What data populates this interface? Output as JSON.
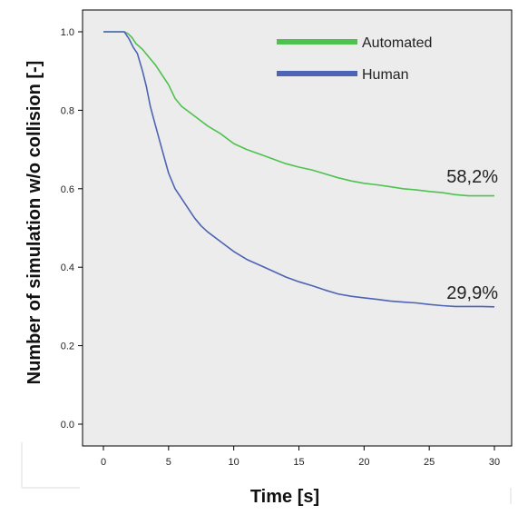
{
  "chart_data": {
    "type": "line",
    "title": "",
    "xlabel": "Time [s]",
    "ylabel": "Number of simulation w/o collision [-]",
    "xlim": [
      0,
      30
    ],
    "ylim": [
      0,
      1.0
    ],
    "x_ticks": [
      "0",
      "5",
      "10",
      "15",
      "20",
      "25",
      "30"
    ],
    "y_ticks": [
      "0.0",
      "0.2",
      "0.4",
      "0.6",
      "0.8",
      "1.0"
    ],
    "grid": false,
    "legend_position": "top-right",
    "background": "#ececec",
    "series": [
      {
        "name": "Automated",
        "color": "#4ec24e",
        "end_label": "58,2%",
        "x": [
          0,
          1.6,
          1.9,
          2.2,
          2.5,
          3.0,
          3.5,
          4.0,
          4.5,
          5.0,
          5.5,
          6.0,
          7.0,
          8.0,
          9.0,
          10.0,
          11.0,
          12.0,
          13.0,
          14.0,
          15.0,
          16.0,
          17.0,
          18.0,
          19.0,
          20.0,
          21.0,
          22.0,
          23.0,
          24.0,
          25.0,
          26.0,
          27.0,
          28.0,
          29.0,
          30.0
        ],
        "y": [
          1.0,
          1.0,
          0.995,
          0.985,
          0.97,
          0.955,
          0.935,
          0.915,
          0.89,
          0.865,
          0.83,
          0.81,
          0.785,
          0.76,
          0.74,
          0.715,
          0.7,
          0.688,
          0.676,
          0.664,
          0.655,
          0.648,
          0.638,
          0.628,
          0.62,
          0.614,
          0.61,
          0.605,
          0.6,
          0.597,
          0.593,
          0.59,
          0.585,
          0.582,
          0.582,
          0.582
        ]
      },
      {
        "name": "Human",
        "color": "#4d63b5",
        "end_label": "29,9%",
        "x": [
          0,
          1.6,
          1.8,
          2.0,
          2.3,
          2.6,
          3.0,
          3.3,
          3.6,
          4.0,
          4.5,
          5.0,
          5.5,
          6.0,
          6.5,
          7.0,
          7.5,
          8.0,
          9.0,
          10.0,
          11.0,
          12.0,
          13.0,
          14.0,
          15.0,
          16.0,
          17.0,
          18.0,
          19.0,
          20.0,
          21.0,
          22.0,
          23.0,
          24.0,
          25.0,
          26.0,
          27.0,
          28.0,
          29.0,
          30.0
        ],
        "y": [
          1.0,
          1.0,
          0.99,
          0.98,
          0.96,
          0.945,
          0.9,
          0.86,
          0.81,
          0.76,
          0.7,
          0.64,
          0.6,
          0.575,
          0.55,
          0.525,
          0.505,
          0.49,
          0.465,
          0.44,
          0.42,
          0.405,
          0.39,
          0.375,
          0.363,
          0.353,
          0.342,
          0.332,
          0.326,
          0.322,
          0.318,
          0.314,
          0.311,
          0.309,
          0.305,
          0.302,
          0.3,
          0.3,
          0.3,
          0.299
        ]
      }
    ]
  }
}
